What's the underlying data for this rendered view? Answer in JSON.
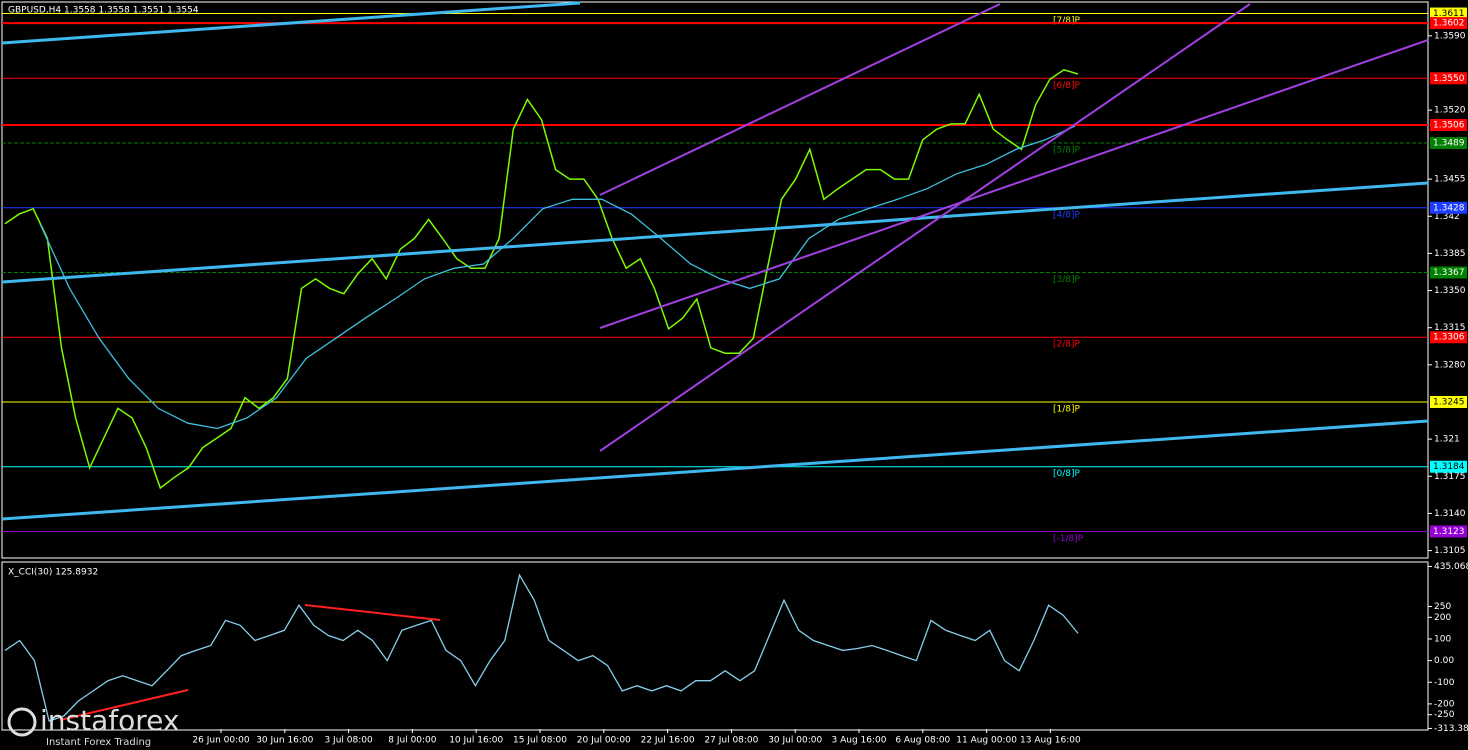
{
  "header": {
    "title": "GBPUSD,H4  1.3558 1.3558 1.3551 1.3554"
  },
  "logo": {
    "name": "instaforex",
    "slogan": "Instant Forex Trading"
  },
  "x_axis": {
    "categories": [
      "26 Jun 00:00",
      "30 Jun 16:00",
      "3 Jul 08:00",
      "8 Jul 00:00",
      "10 Jul 16:00",
      "15 Jul 08:00",
      "20 Jul 00:00",
      "22 Jul 16:00",
      "27 Jul 08:00",
      "30 Jul 00:00",
      "3 Aug 16:00",
      "6 Aug 08:00",
      "11 Aug 00:00",
      "13 Aug 16:00"
    ]
  },
  "chart_data": [
    {
      "type": "line",
      "ylim": [
        1.3098,
        1.362
      ],
      "yticks": [
        {
          "value": 1.359,
          "label": "1.3590"
        },
        {
          "value": 1.352,
          "label": "1.3520"
        },
        1.3455,
        1.342,
        1.3385,
        {
          "value": 1.335,
          "label": "1.3350"
        },
        1.3315,
        {
          "value": 1.328,
          "label": "1.3280"
        },
        1.321,
        1.3175,
        {
          "value": 1.314,
          "label": "1.3140"
        },
        1.3105
      ],
      "series": [
        {
          "name": "GBPUSD",
          "color": "#7cfc00",
          "values": [
            1.3413,
            1.3422,
            1.3427,
            1.3399,
            1.3296,
            1.323,
            1.3183,
            1.3211,
            1.3239,
            1.323,
            1.3202,
            1.3164,
            1.3174,
            1.3183,
            1.3202,
            1.3211,
            1.322,
            1.3249,
            1.3239,
            1.3249,
            1.3267,
            1.3352,
            1.3361,
            1.3352,
            1.3347,
            1.3366,
            1.338,
            1.3361,
            1.3389,
            1.3399,
            1.3417,
            1.3399,
            1.338,
            1.3371,
            1.3371,
            1.3399,
            1.3502,
            1.353,
            1.3511,
            1.3464,
            1.3455,
            1.3455,
            1.3436,
            1.3399,
            1.3371,
            1.338,
            1.3352,
            1.3314,
            1.3324,
            1.3342,
            1.3296,
            1.3291,
            1.3291,
            1.3305,
            1.3371,
            1.3436,
            1.3455,
            1.3483,
            1.3436,
            1.3446,
            1.3455,
            1.3464,
            1.3464,
            1.3455,
            1.3455,
            1.3492,
            1.3502,
            1.3507,
            1.3507,
            1.3535,
            1.3502,
            1.3492,
            1.3483,
            1.3525,
            1.3549,
            1.3558,
            1.3554
          ]
        },
        {
          "name": "MA",
          "color": "#40bfdf",
          "values": [
            1.3413,
            1.3352,
            1.3305,
            1.3267,
            1.3239,
            1.3225,
            1.322,
            1.323,
            1.3249,
            1.3286,
            1.3305,
            1.3324,
            1.3342,
            1.3361,
            1.3371,
            1.3375,
            1.3399,
            1.3427,
            1.3436,
            1.3436,
            1.3422,
            1.3399,
            1.3375,
            1.3361,
            1.3352,
            1.3361,
            1.3399,
            1.3417,
            1.3427,
            1.3436,
            1.3446,
            1.346,
            1.3469,
            1.3483,
            1.3492,
            1.3505
          ]
        }
      ],
      "levels": [
        {
          "value": 1.3611,
          "label": "1.3611",
          "tag": "[7/8]P",
          "color": "#ffff00"
        },
        {
          "value": 1.3602,
          "label": "1.3602",
          "color": "#ff0000"
        },
        {
          "value": 1.355,
          "label": "1.3550",
          "tag": "[6/8]P",
          "color": "#ff0000"
        },
        {
          "value": 1.3506,
          "label": "1.3506",
          "color": "#ff0000"
        },
        {
          "value": 1.3489,
          "label": "1.3489",
          "tag": "[5/8]P",
          "color": "#008000"
        },
        {
          "value": 1.3428,
          "label": "1.3428",
          "tag": "[4/8]P",
          "color": "#1e3cff"
        },
        {
          "value": 1.3367,
          "label": "1.3367",
          "tag": "[3/8]P",
          "color": "#008000"
        },
        {
          "value": 1.3306,
          "label": "1.3306",
          "tag": "[2/8]P",
          "color": "#ff0000"
        },
        {
          "value": 1.3245,
          "label": "1.3245",
          "tag": "[1/8]P",
          "color": "#ffff00"
        },
        {
          "value": 1.3184,
          "label": "1.3184",
          "tag": "[0/8]P",
          "color": "#00ffff"
        },
        {
          "value": 1.3123,
          "label": "1.3123",
          "tag": "[-1/8]P",
          "color": "#9400d3"
        }
      ]
    },
    {
      "type": "line",
      "title": "X_CCI(30) 125.8932",
      "ylim": [
        -316,
        451
      ],
      "yticks": [
        435.0684,
        250,
        200,
        100,
        {
          "value": 0,
          "label": "0.00"
        },
        -100,
        -200,
        -250,
        -313.386
      ],
      "series": [
        {
          "name": "X_CCI(30)",
          "color": "#87ceeb",
          "values": [
            47,
            93,
            0,
            -279,
            -256,
            -186,
            -140,
            -93,
            -70,
            -93,
            -116,
            -47,
            23,
            47,
            70,
            186,
            163,
            93,
            116,
            140,
            256,
            163,
            116,
            93,
            140,
            93,
            0,
            140,
            163,
            186,
            47,
            0,
            -116,
            0,
            93,
            395,
            279,
            93,
            47,
            0,
            23,
            -23,
            -140,
            -116,
            -140,
            -116,
            -140,
            -93,
            -93,
            -47,
            -93,
            -47,
            116,
            279,
            140,
            93,
            70,
            47,
            56,
            70,
            47,
            23,
            0,
            186,
            140,
            116,
            93,
            140,
            0,
            -47,
            93,
            256,
            209,
            125.8932
          ]
        }
      ]
    }
  ]
}
